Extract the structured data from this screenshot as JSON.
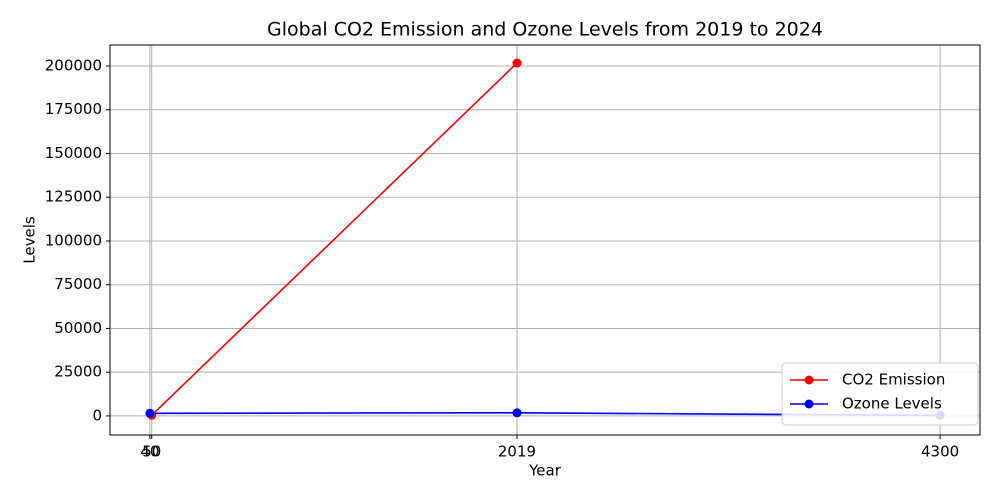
{
  "chart_data": {
    "type": "line",
    "title": "Global CO2 Emission and Ozone Levels from 2019 to 2024",
    "x_label": "Year",
    "y_label": "Levels",
    "series": [
      {
        "name": "CO2 Emission",
        "color": "#ff0000",
        "x": [
          50,
          2019
        ],
        "values": [
          410,
          201700
        ]
      },
      {
        "name": "Ozone Levels",
        "color": "#0000ff",
        "x": [
          40,
          2019,
          4300
        ],
        "values": [
          1500,
          1800,
          300
        ]
      }
    ],
    "xlim": [
      -175,
      4515
    ],
    "xticks": [
      40,
      50,
      2019,
      4300
    ],
    "ylim": [
      -10900,
      212000
    ],
    "yticks": [
      0,
      25000,
      50000,
      75000,
      100000,
      125000,
      150000,
      175000,
      200000
    ],
    "grid": true,
    "legend": "lower right"
  }
}
